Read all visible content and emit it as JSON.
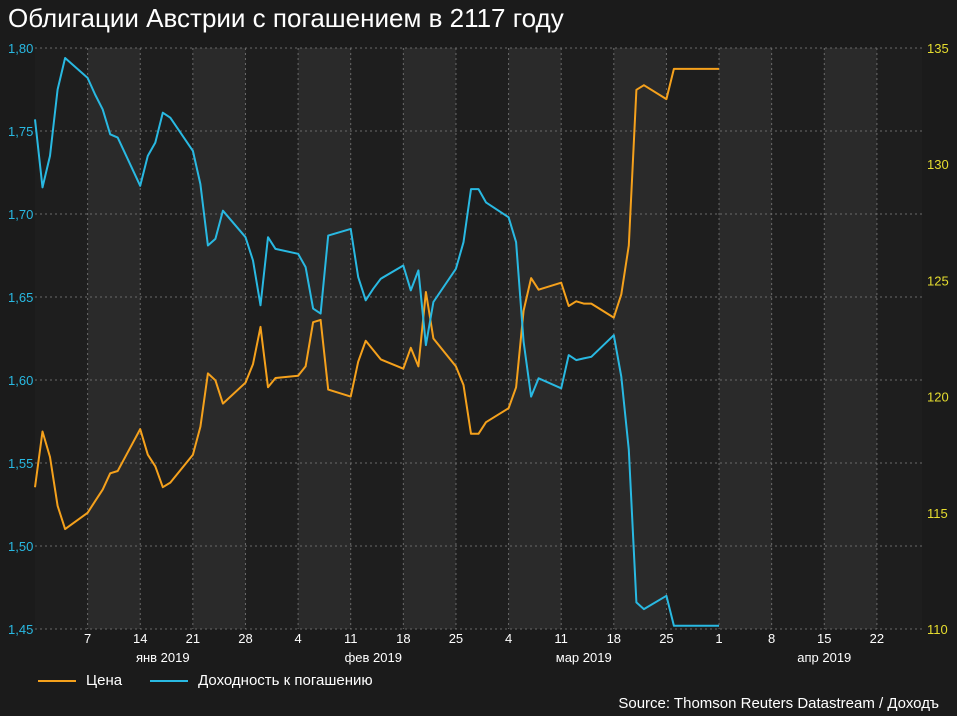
{
  "chart_data": {
    "type": "line",
    "title": "Облигации Австрии с погашением в 2117 году",
    "x": [
      "2018-12-31",
      "2019-01-01",
      "2019-01-02",
      "2019-01-03",
      "2019-01-04",
      "2019-01-07",
      "2019-01-08",
      "2019-01-09",
      "2019-01-10",
      "2019-01-11",
      "2019-01-14",
      "2019-01-15",
      "2019-01-16",
      "2019-01-17",
      "2019-01-18",
      "2019-01-21",
      "2019-01-22",
      "2019-01-23",
      "2019-01-24",
      "2019-01-25",
      "2019-01-28",
      "2019-01-29",
      "2019-01-30",
      "2019-01-31",
      "2019-02-01",
      "2019-02-04",
      "2019-02-05",
      "2019-02-06",
      "2019-02-07",
      "2019-02-08",
      "2019-02-11",
      "2019-02-12",
      "2019-02-13",
      "2019-02-14",
      "2019-02-15",
      "2019-02-18",
      "2019-02-19",
      "2019-02-20",
      "2019-02-21",
      "2019-02-22",
      "2019-02-25",
      "2019-02-26",
      "2019-02-27",
      "2019-02-28",
      "2019-03-01",
      "2019-03-04",
      "2019-03-05",
      "2019-03-06",
      "2019-03-07",
      "2019-03-08",
      "2019-03-11",
      "2019-03-12",
      "2019-03-13",
      "2019-03-14",
      "2019-03-15",
      "2019-03-18",
      "2019-03-19",
      "2019-03-20",
      "2019-03-21",
      "2019-03-22",
      "2019-03-25",
      "2019-03-26",
      "2019-03-27",
      "2019-03-28",
      "2019-03-29",
      "2019-04-01"
    ],
    "series": [
      {
        "name": "Цена",
        "axis": "right",
        "color": "#f5a11c",
        "values": [
          116.1,
          118.5,
          117.4,
          115.3,
          114.3,
          115.0,
          115.5,
          116.0,
          116.7,
          116.8,
          118.6,
          117.5,
          117.0,
          116.1,
          116.3,
          117.5,
          118.7,
          121.0,
          120.7,
          119.7,
          120.6,
          121.4,
          123.0,
          120.4,
          120.8,
          120.9,
          121.3,
          123.2,
          123.3,
          120.3,
          120.0,
          121.5,
          122.4,
          122.0,
          121.6,
          121.2,
          122.1,
          121.3,
          124.5,
          122.5,
          121.3,
          120.5,
          118.4,
          118.4,
          118.9,
          119.5,
          120.4,
          123.7,
          125.1,
          124.6,
          124.9,
          123.9,
          124.1,
          124.0,
          124.0,
          123.4,
          124.4,
          126.5,
          133.2,
          133.4,
          132.8,
          134.1,
          134.1,
          134.1,
          134.1,
          134.1
        ]
      },
      {
        "name": "Доходность к погашению",
        "axis": "left",
        "color": "#29b9e2",
        "values": [
          1.757,
          1.716,
          1.735,
          1.775,
          1.794,
          1.782,
          1.772,
          1.763,
          1.748,
          1.746,
          1.717,
          1.735,
          1.743,
          1.761,
          1.758,
          1.738,
          1.718,
          1.681,
          1.685,
          1.702,
          1.686,
          1.672,
          1.645,
          1.686,
          1.679,
          1.676,
          1.668,
          1.643,
          1.64,
          1.687,
          1.691,
          1.662,
          1.648,
          1.655,
          1.661,
          1.669,
          1.654,
          1.666,
          1.621,
          1.647,
          1.667,
          1.683,
          1.715,
          1.715,
          1.707,
          1.698,
          1.683,
          1.623,
          1.59,
          1.601,
          1.595,
          1.615,
          1.612,
          1.613,
          1.614,
          1.627,
          1.602,
          1.558,
          1.466,
          1.462,
          1.47,
          1.452,
          1.452,
          1.452,
          1.452,
          1.452
        ]
      }
    ],
    "y_left": {
      "min": 1.45,
      "max": 1.8,
      "ticks": [
        "1,45",
        "1,50",
        "1,55",
        "1,60",
        "1,65",
        "1,70",
        "1,75",
        "1,80"
      ],
      "color": "#29b9e2"
    },
    "y_right": {
      "min": 110,
      "max": 135,
      "ticks": [
        "110",
        "115",
        "120",
        "125",
        "130",
        "135"
      ],
      "color": "#e6dd2f"
    },
    "x_ticks": [
      {
        "date": "2019-01-07",
        "label": "7"
      },
      {
        "date": "2019-01-14",
        "label": "14"
      },
      {
        "date": "2019-01-21",
        "label": "21"
      },
      {
        "date": "2019-01-28",
        "label": "28"
      },
      {
        "date": "2019-02-04",
        "label": "4"
      },
      {
        "date": "2019-02-11",
        "label": "11"
      },
      {
        "date": "2019-02-18",
        "label": "18"
      },
      {
        "date": "2019-02-25",
        "label": "25"
      },
      {
        "date": "2019-03-04",
        "label": "4"
      },
      {
        "date": "2019-03-11",
        "label": "11"
      },
      {
        "date": "2019-03-18",
        "label": "18"
      },
      {
        "date": "2019-03-25",
        "label": "25"
      },
      {
        "date": "2019-04-01",
        "label": "1"
      },
      {
        "date": "2019-04-08",
        "label": "8"
      },
      {
        "date": "2019-04-15",
        "label": "15"
      },
      {
        "date": "2019-04-22",
        "label": "22"
      }
    ],
    "months": [
      {
        "date": "2019-01-17",
        "label": "янв 2019"
      },
      {
        "date": "2019-02-14",
        "label": "фев 2019"
      },
      {
        "date": "2019-03-14",
        "label": "мар 2019"
      },
      {
        "date": "2019-04-15",
        "label": "апр 2019"
      }
    ],
    "x_range": [
      "2018-12-31",
      "2019-04-28"
    ],
    "grid": true,
    "legend_position": "bottom-left"
  },
  "legend": {
    "price_label": "Цена",
    "yield_label": "Доходность к погашению"
  },
  "source": "Source: Thomson Reuters Datastream / Доходъ",
  "colors": {
    "background": "#1b1b1b",
    "plot_band": "#2a2a2a",
    "grid": "#6a6a6a"
  }
}
